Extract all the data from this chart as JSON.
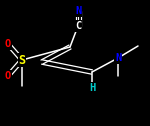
{
  "bg_color": "#000000",
  "bond_color": "#ffffff",
  "atom_colors": {
    "N": "#0000ff",
    "S": "#ffff00",
    "O": "#ff0000",
    "C_white": "#ffffff",
    "H": "#00cccc"
  },
  "figsize": [
    1.5,
    1.26
  ],
  "dpi": 100,
  "font_size": 7.5
}
